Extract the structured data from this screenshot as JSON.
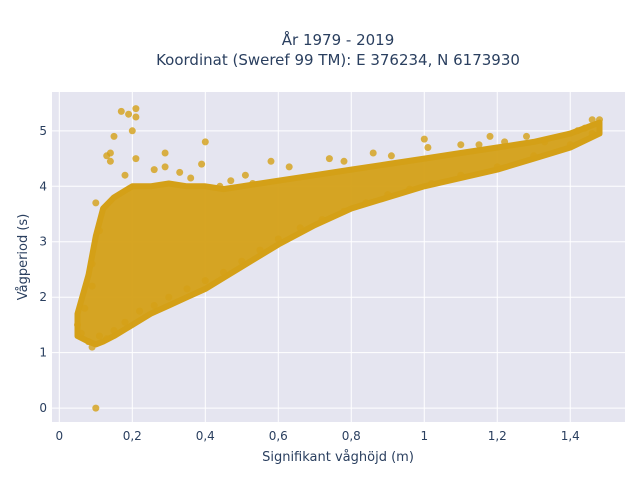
{
  "chart_data": {
    "type": "scatter",
    "title_lines": [
      "År 1979 - 2019",
      "Koordinat (Sweref 99 TM): E 376234, N 6173930"
    ],
    "xlabel": "Signifikant våghöjd (m)",
    "ylabel": "Vågperiod (s)",
    "xlim": [
      -0.02,
      1.55
    ],
    "ylim": [
      -0.25,
      5.7
    ],
    "x_ticks": [
      0,
      0.2,
      0.4,
      0.6,
      0.8,
      1,
      1.2,
      1.4
    ],
    "x_tick_labels": [
      "0",
      "0,2",
      "0,4",
      "0,6",
      "0,8",
      "1",
      "1,2",
      "1,4"
    ],
    "y_ticks": [
      0,
      1,
      2,
      3,
      4,
      5
    ],
    "y_tick_labels": [
      "0",
      "1",
      "2",
      "3",
      "4",
      "5"
    ],
    "grid": true,
    "colors": {
      "marker": "#d4a017",
      "plot_bg": "#e5e5f0",
      "grid": "#ffffff"
    },
    "series": [
      {
        "points": [
          [
            0.1,
            0.0
          ],
          [
            0.09,
            1.1
          ],
          [
            0.09,
            2.6
          ],
          [
            0.1,
            3.7
          ],
          [
            0.11,
            3.2
          ],
          [
            0.13,
            4.55
          ],
          [
            0.14,
            4.6
          ],
          [
            0.14,
            4.45
          ],
          [
            0.15,
            4.9
          ],
          [
            0.17,
            5.35
          ],
          [
            0.19,
            5.3
          ],
          [
            0.21,
            5.4
          ],
          [
            0.21,
            5.25
          ],
          [
            0.2,
            5.0
          ],
          [
            0.21,
            4.5
          ],
          [
            0.4,
            4.8
          ],
          [
            0.18,
            4.2
          ],
          [
            0.26,
            4.3
          ],
          [
            0.29,
            4.6
          ],
          [
            0.29,
            4.35
          ],
          [
            0.33,
            4.25
          ],
          [
            0.36,
            4.15
          ],
          [
            0.39,
            4.4
          ],
          [
            0.44,
            4.0
          ],
          [
            0.47,
            4.1
          ],
          [
            0.51,
            4.2
          ],
          [
            0.53,
            4.05
          ],
          [
            0.58,
            4.45
          ],
          [
            0.63,
            4.35
          ],
          [
            0.74,
            4.5
          ],
          [
            0.78,
            4.45
          ],
          [
            0.86,
            4.6
          ],
          [
            0.91,
            4.55
          ],
          [
            1.0,
            4.85
          ],
          [
            1.01,
            4.7
          ],
          [
            1.1,
            4.75
          ],
          [
            1.15,
            4.75
          ],
          [
            1.18,
            4.9
          ],
          [
            1.22,
            4.8
          ],
          [
            1.28,
            4.9
          ],
          [
            1.33,
            4.8
          ],
          [
            1.42,
            5.0
          ],
          [
            1.44,
            5.05
          ],
          [
            1.46,
            5.2
          ],
          [
            1.48,
            5.2
          ],
          [
            0.05,
            1.5
          ],
          [
            0.06,
            1.35
          ],
          [
            0.07,
            1.8
          ],
          [
            0.08,
            1.2
          ],
          [
            0.09,
            2.2
          ],
          [
            0.11,
            1.3
          ],
          [
            0.13,
            1.25
          ],
          [
            0.15,
            1.4
          ],
          [
            0.18,
            1.55
          ],
          [
            0.22,
            1.75
          ],
          [
            0.26,
            1.85
          ],
          [
            0.3,
            2.0
          ],
          [
            0.35,
            2.15
          ],
          [
            0.4,
            2.3
          ],
          [
            0.45,
            2.45
          ],
          [
            0.5,
            2.65
          ],
          [
            0.55,
            2.85
          ],
          [
            0.6,
            3.05
          ],
          [
            0.66,
            3.25
          ],
          [
            0.72,
            3.4
          ],
          [
            0.78,
            3.55
          ],
          [
            0.84,
            3.7
          ],
          [
            0.9,
            3.85
          ],
          [
            0.96,
            3.95
          ],
          [
            1.02,
            4.05
          ],
          [
            1.1,
            4.2
          ],
          [
            1.2,
            4.35
          ],
          [
            1.3,
            4.55
          ],
          [
            1.4,
            4.75
          ],
          [
            1.46,
            4.95
          ]
        ]
      }
    ],
    "band": {
      "x": [
        0.05,
        0.08,
        0.1,
        0.12,
        0.15,
        0.2,
        0.25,
        0.3,
        0.35,
        0.4,
        0.45,
        0.5,
        0.6,
        0.7,
        0.8,
        0.9,
        1.0,
        1.1,
        1.2,
        1.3,
        1.4,
        1.48
      ],
      "y_low": [
        1.3,
        1.2,
        1.15,
        1.2,
        1.3,
        1.5,
        1.7,
        1.85,
        2.0,
        2.15,
        2.35,
        2.55,
        2.95,
        3.3,
        3.6,
        3.8,
        4.0,
        4.15,
        4.3,
        4.5,
        4.7,
        4.95
      ],
      "y_high": [
        1.7,
        2.4,
        3.1,
        3.6,
        3.8,
        4.0,
        4.0,
        4.05,
        4.0,
        4.0,
        3.95,
        4.0,
        4.1,
        4.2,
        4.3,
        4.4,
        4.5,
        4.6,
        4.7,
        4.8,
        4.95,
        5.15
      ]
    }
  }
}
